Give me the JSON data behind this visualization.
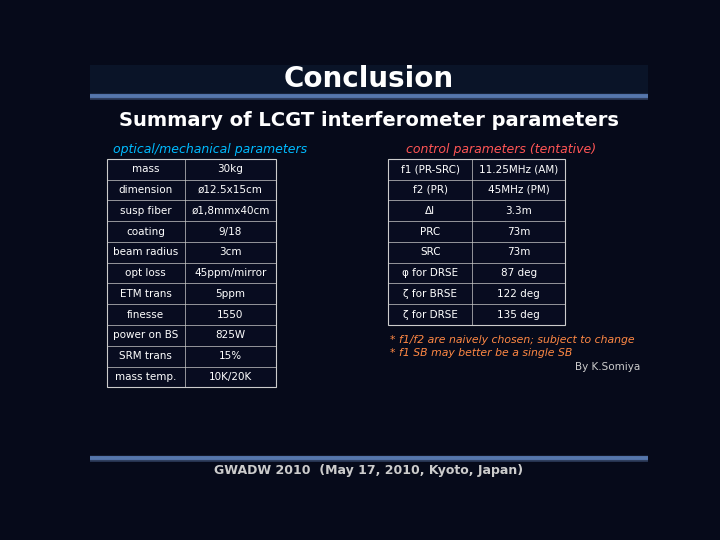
{
  "title": "Conclusion",
  "subtitle": "Summary of LCGT interferometer parameters",
  "left_label": "optical/mechanical parameters",
  "right_label": "control parameters (tentative)",
  "left_table": [
    [
      "mass",
      "30kg"
    ],
    [
      "dimension",
      "ø12.5x15cm"
    ],
    [
      "susp fiber",
      "ø1,8mmx40cm"
    ],
    [
      "coating",
      "9/18"
    ],
    [
      "beam radius",
      "3cm"
    ],
    [
      "opt loss",
      "45ppm/mirror"
    ],
    [
      "ETM trans",
      "5ppm"
    ],
    [
      "finesse",
      "1550"
    ],
    [
      "power on BS",
      "825W"
    ],
    [
      "SRM trans",
      "15%"
    ],
    [
      "mass temp.",
      "10K/20K"
    ]
  ],
  "right_table": [
    [
      "f1 (PR-SRC)",
      "11.25MHz (AM)"
    ],
    [
      "f2 (PR)",
      "45MHz (PM)"
    ],
    [
      "Δl",
      "3.3m"
    ],
    [
      "PRC",
      "73m"
    ],
    [
      "SRC",
      "73m"
    ],
    [
      "φ for DRSE",
      "87 deg"
    ],
    [
      "ζ for BRSE",
      "122 deg"
    ],
    [
      "ζ for DRSE",
      "135 deg"
    ]
  ],
  "footnote1": "* f1/f2 are naively chosen; subject to change",
  "footnote2": "* f1 SB may better be a single SB",
  "author": "By K.Somiya",
  "footer": "GWADW 2010  (May 17, 2010, Kyoto, Japan)",
  "bg_color": "#060a1a",
  "table_bg": "#080c20",
  "table_border": "#cccccc",
  "title_color": "#ffffff",
  "subtitle_color": "#ffffff",
  "left_label_color": "#00bbff",
  "right_label_color": "#ff5555",
  "table_text_color": "#ffffff",
  "footnote_color": "#ff8844",
  "footer_color": "#cccccc",
  "author_color": "#cccccc",
  "deco_bar_color": "#4466aa"
}
